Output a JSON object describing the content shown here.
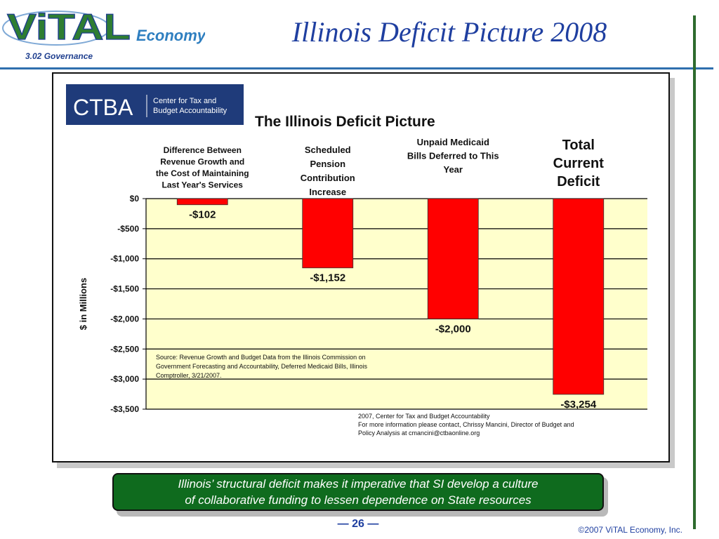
{
  "header": {
    "logo_text": "ViTAL",
    "logo_sub": "Economy",
    "section": "3.02 Governance",
    "title": "Illinois Deficit Picture 2008"
  },
  "colors": {
    "bar": "#ff0000",
    "plot_bg": "#ffffcc",
    "title_blue": "#1f3fa0",
    "caption_green": "#0f6b1e"
  },
  "ctba_logo": {
    "abbr": "CTBA",
    "line1": "Center for Tax and",
    "line2": "Budget Accountability"
  },
  "chart_data": {
    "type": "bar",
    "title": "The Illinois Deficit Picture",
    "ylabel": "$ in Millions",
    "ylim": [
      -3500,
      0
    ],
    "yticks": [
      0,
      -500,
      -1000,
      -1500,
      -2000,
      -2500,
      -3000,
      -3500
    ],
    "ytick_labels": [
      "$0",
      "-$500",
      "-$1,000",
      "-$1,500",
      "-$2,000",
      "-$2,500",
      "-$3,000",
      "-$3,500"
    ],
    "grid": true,
    "categories": [
      [
        "Difference Between",
        "Revenue Growth and",
        "the Cost of Maintaining",
        "Last Year's Services"
      ],
      [
        "Scheduled",
        "Pension",
        "Contribution",
        "Increase"
      ],
      [
        "Unpaid Medicaid",
        "Bills Deferred to This",
        "Year"
      ],
      [
        "Total",
        "Current",
        "Deficit"
      ]
    ],
    "values": [
      -102,
      -1152,
      -2000,
      -3254
    ],
    "value_labels": [
      "-$102",
      "-$1,152",
      "-$2,000",
      "-$3,254"
    ],
    "source_note": [
      "Source: Revenue Growth and Budget Data from the Illinois Commission on",
      "Government Forecasting and Accountability, Deferred Medicaid Bills, Illinois",
      "Comptroller, 3/21/2007."
    ],
    "credit_note": [
      "2007, Center for Tax and Budget Accountability",
      "For more information please contact, Chrissy Mancini, Director of Budget and",
      "Policy Analysis at cmancini@ctbaonline.org"
    ]
  },
  "caption": {
    "line1": "Illinois’ structural deficit makes it imperative that SI develop a culture",
    "line2": "of collaborative funding to lessen dependence on State resources"
  },
  "footer": {
    "page": "— 26 —",
    "copyright": "©2007 ViTAL Economy, Inc."
  }
}
